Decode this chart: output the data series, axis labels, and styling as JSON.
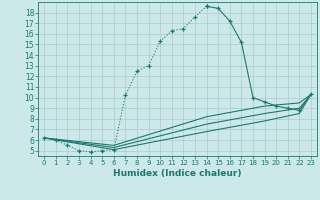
{
  "xlabel": "Humidex (Indice chaleur)",
  "bg_color": "#cce8e8",
  "grid_color": "#b0d0d0",
  "line_color": "#1a7a6e",
  "xlim": [
    -0.5,
    23.5
  ],
  "ylim": [
    4.5,
    19.0
  ],
  "xticks": [
    0,
    1,
    2,
    3,
    4,
    5,
    6,
    7,
    8,
    9,
    10,
    11,
    12,
    13,
    14,
    15,
    16,
    17,
    18,
    19,
    20,
    21,
    22,
    23
  ],
  "yticks": [
    5,
    6,
    7,
    8,
    9,
    10,
    11,
    12,
    13,
    14,
    15,
    16,
    17,
    18
  ],
  "curves": [
    {
      "x": [
        0,
        1,
        2,
        3,
        4,
        5,
        6,
        7,
        8,
        9,
        10,
        11,
        12,
        13,
        14
      ],
      "y": [
        6.2,
        6.0,
        5.5,
        5.0,
        4.9,
        5.0,
        5.1,
        10.2,
        12.5,
        13.0,
        15.3,
        16.3,
        16.5,
        17.6,
        18.6
      ],
      "linestyle": ":",
      "marker": "+"
    },
    {
      "x": [
        14,
        15,
        16,
        17,
        18,
        19,
        20,
        21,
        22,
        23
      ],
      "y": [
        18.6,
        18.4,
        17.2,
        15.2,
        10.0,
        9.6,
        9.2,
        9.0,
        8.8,
        10.3
      ],
      "linestyle": "-",
      "marker": "+"
    },
    {
      "x": [
        0,
        6,
        14,
        19,
        22,
        23
      ],
      "y": [
        6.2,
        5.1,
        6.8,
        7.8,
        8.5,
        10.3
      ],
      "linestyle": "-",
      "marker": null
    },
    {
      "x": [
        0,
        6,
        14,
        19,
        22,
        23
      ],
      "y": [
        6.2,
        5.3,
        7.5,
        8.5,
        9.0,
        10.3
      ],
      "linestyle": "-",
      "marker": null
    },
    {
      "x": [
        0,
        6,
        14,
        19,
        22,
        23
      ],
      "y": [
        6.2,
        5.5,
        8.2,
        9.2,
        9.5,
        10.3
      ],
      "linestyle": "-",
      "marker": null
    }
  ]
}
